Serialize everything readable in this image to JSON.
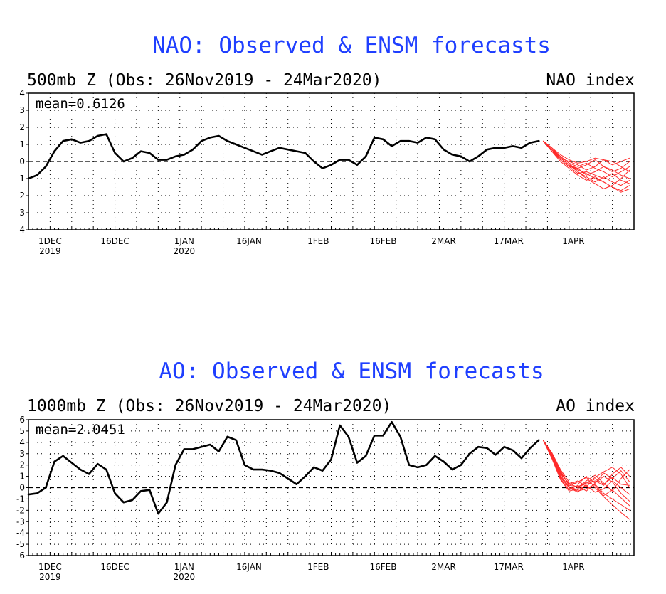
{
  "colors": {
    "title": "#1f3fff",
    "observed": "#000000",
    "forecast": "#ff2a2a",
    "grid": "#000000"
  },
  "chart_data": [
    {
      "type": "line",
      "title": "NAO: Observed & ENSM forecasts",
      "subtitle_left": "500mb Z (Obs: 26Nov2019 - 24Mar2020)",
      "subtitle_right": "NAO index",
      "mean_label": "mean=0.6126",
      "ylim": [
        -4,
        4
      ],
      "yticks": [
        "4",
        "3",
        "2",
        "1",
        "0",
        "-1",
        "-2",
        "-3",
        "-4"
      ],
      "xlim": [
        0,
        140
      ],
      "xticks": [
        {
          "day": 5,
          "label": "1DEC",
          "sub": "2019"
        },
        {
          "day": 20,
          "label": "16DEC",
          "sub": ""
        },
        {
          "day": 36,
          "label": "1JAN",
          "sub": "2020"
        },
        {
          "day": 51,
          "label": "16JAN",
          "sub": ""
        },
        {
          "day": 67,
          "label": "1FEB",
          "sub": ""
        },
        {
          "day": 82,
          "label": "16FEB",
          "sub": ""
        },
        {
          "day": 96,
          "label": "2MAR",
          "sub": ""
        },
        {
          "day": 111,
          "label": "17MAR",
          "sub": ""
        },
        {
          "day": 126,
          "label": "1APR",
          "sub": ""
        }
      ],
      "observed": {
        "x": [
          0,
          2,
          4,
          6,
          8,
          10,
          12,
          14,
          16,
          18,
          20,
          22,
          24,
          26,
          28,
          30,
          32,
          34,
          36,
          38,
          40,
          42,
          44,
          46,
          48,
          50,
          52,
          54,
          56,
          58,
          60,
          62,
          64,
          66,
          68,
          70,
          72,
          74,
          76,
          78,
          80,
          82,
          84,
          86,
          88,
          90,
          92,
          94,
          96,
          98,
          100,
          102,
          104,
          106,
          108,
          110,
          112,
          114,
          116,
          118
        ],
        "y": [
          -1.0,
          -0.8,
          -0.3,
          0.6,
          1.2,
          1.3,
          1.1,
          1.2,
          1.5,
          1.6,
          0.5,
          0.0,
          0.2,
          0.6,
          0.5,
          0.1,
          0.1,
          0.3,
          0.4,
          0.7,
          1.2,
          1.4,
          1.5,
          1.2,
          1.0,
          0.8,
          0.6,
          0.4,
          0.6,
          0.8,
          0.7,
          0.6,
          0.5,
          0.0,
          -0.4,
          -0.2,
          0.1,
          0.1,
          -0.2,
          0.3,
          1.4,
          1.3,
          0.9,
          1.2,
          1.2,
          1.1,
          1.4,
          1.3,
          0.7,
          0.4,
          0.3,
          0.0,
          0.3,
          0.7,
          0.8,
          0.8,
          0.9,
          0.8,
          1.1,
          1.2
        ]
      },
      "forecast": {
        "x": [
          119,
          121,
          123,
          125,
          127,
          129,
          131,
          133,
          135,
          137,
          139
        ],
        "members": [
          [
            1.2,
            0.7,
            0.2,
            -0.2,
            -0.5,
            -0.7,
            -1.0,
            -1.2,
            -1.5,
            -1.7,
            -1.4
          ],
          [
            1.2,
            0.6,
            0.1,
            -0.3,
            -0.4,
            -0.2,
            0.1,
            -0.3,
            -0.6,
            -0.4,
            0.0
          ],
          [
            1.2,
            0.8,
            0.3,
            -0.1,
            -0.6,
            -1.0,
            -1.3,
            -1.6,
            -1.4,
            -1.0,
            -0.5
          ],
          [
            1.2,
            0.7,
            0.2,
            0.0,
            -0.2,
            -0.5,
            -0.3,
            0.1,
            0.0,
            -0.3,
            -0.6
          ],
          [
            1.2,
            0.6,
            0.0,
            -0.4,
            -0.8,
            -1.1,
            -0.9,
            -1.2,
            -1.5,
            -1.8,
            -1.6
          ],
          [
            1.2,
            0.8,
            0.4,
            0.1,
            -0.1,
            0.0,
            0.2,
            0.1,
            -0.2,
            0.0,
            0.2
          ],
          [
            1.2,
            0.7,
            0.1,
            -0.3,
            -0.7,
            -0.6,
            -0.8,
            -1.0,
            -0.7,
            -1.1,
            -1.3
          ],
          [
            1.2,
            0.6,
            0.2,
            -0.2,
            -0.4,
            -0.8,
            -0.6,
            -0.3,
            -0.5,
            -0.8,
            -1.0
          ],
          [
            1.2,
            0.7,
            0.3,
            -0.1,
            -0.3,
            -0.1,
            -0.4,
            -0.6,
            -0.9,
            -0.6,
            -0.3
          ],
          [
            1.2,
            0.8,
            0.2,
            -0.2,
            -0.6,
            -0.9,
            -1.2,
            -0.9,
            -1.2,
            -1.4,
            -1.1
          ]
        ]
      }
    },
    {
      "type": "line",
      "title": "AO: Observed & ENSM forecasts",
      "subtitle_left": "1000mb Z (Obs: 26Nov2019 - 24Mar2020)",
      "subtitle_right": "AO index",
      "mean_label": "mean=2.0451",
      "ylim": [
        -6,
        6
      ],
      "yticks": [
        "6",
        "5",
        "4",
        "3",
        "2",
        "1",
        "0",
        "-1",
        "-2",
        "-3",
        "-4",
        "-5",
        "-6"
      ],
      "xlim": [
        0,
        140
      ],
      "xticks": [
        {
          "day": 5,
          "label": "1DEC",
          "sub": "2019"
        },
        {
          "day": 20,
          "label": "16DEC",
          "sub": ""
        },
        {
          "day": 36,
          "label": "1JAN",
          "sub": "2020"
        },
        {
          "day": 51,
          "label": "16JAN",
          "sub": ""
        },
        {
          "day": 67,
          "label": "1FEB",
          "sub": ""
        },
        {
          "day": 82,
          "label": "16FEB",
          "sub": ""
        },
        {
          "day": 96,
          "label": "2MAR",
          "sub": ""
        },
        {
          "day": 111,
          "label": "17MAR",
          "sub": ""
        },
        {
          "day": 126,
          "label": "1APR",
          "sub": ""
        }
      ],
      "observed": {
        "x": [
          0,
          2,
          4,
          6,
          8,
          10,
          12,
          14,
          16,
          18,
          20,
          22,
          24,
          26,
          28,
          30,
          32,
          34,
          36,
          38,
          40,
          42,
          44,
          46,
          48,
          50,
          52,
          54,
          56,
          58,
          60,
          62,
          64,
          66,
          68,
          70,
          72,
          74,
          76,
          78,
          80,
          82,
          84,
          86,
          88,
          90,
          92,
          94,
          96,
          98,
          100,
          102,
          104,
          106,
          108,
          110,
          112,
          114,
          116,
          118
        ],
        "y": [
          -0.6,
          -0.5,
          0.0,
          2.3,
          2.8,
          2.2,
          1.6,
          1.2,
          2.1,
          1.6,
          -0.5,
          -1.3,
          -1.1,
          -0.3,
          -0.2,
          -2.3,
          -1.3,
          2.0,
          3.4,
          3.4,
          3.6,
          3.8,
          3.2,
          4.5,
          4.2,
          2.0,
          1.6,
          1.6,
          1.5,
          1.3,
          0.8,
          0.3,
          1.0,
          1.8,
          1.5,
          2.5,
          5.5,
          4.5,
          2.2,
          2.8,
          4.6,
          4.6,
          5.8,
          4.5,
          2.0,
          1.8,
          2.0,
          2.8,
          2.3,
          1.6,
          2.0,
          3.0,
          3.6,
          3.5,
          2.9,
          3.6,
          3.3,
          2.6,
          3.5,
          4.2
        ]
      },
      "forecast": {
        "x": [
          119,
          121,
          123,
          125,
          127,
          129,
          131,
          133,
          135,
          137,
          139
        ],
        "members": [
          [
            4.2,
            2.8,
            1.0,
            0.0,
            -0.4,
            0.3,
            0.6,
            0.2,
            1.2,
            1.8,
            1.0
          ],
          [
            4.2,
            3.0,
            1.5,
            0.2,
            0.5,
            0.9,
            0.0,
            -0.8,
            -1.5,
            -2.2,
            -2.8
          ],
          [
            4.2,
            2.6,
            0.8,
            -0.2,
            0.2,
            -0.3,
            0.4,
            1.0,
            0.5,
            -0.5,
            -1.2
          ],
          [
            4.2,
            2.9,
            1.2,
            0.4,
            0.0,
            0.6,
            1.1,
            0.4,
            -0.3,
            0.8,
            1.6
          ],
          [
            4.2,
            2.7,
            0.9,
            0.0,
            -0.3,
            -0.1,
            0.3,
            -0.5,
            -1.0,
            -1.5,
            -2.0
          ],
          [
            4.2,
            3.1,
            1.6,
            0.5,
            0.3,
            1.0,
            0.4,
            1.3,
            0.8,
            1.5,
            0.5
          ],
          [
            4.2,
            2.8,
            1.1,
            0.1,
            -0.2,
            0.2,
            -0.4,
            -0.1,
            0.6,
            0.0,
            -0.6
          ],
          [
            4.2,
            2.9,
            1.3,
            0.3,
            0.6,
            0.1,
            0.8,
            0.3,
            0.9,
            0.3,
            0.2
          ],
          [
            4.2,
            2.6,
            0.7,
            -0.3,
            -0.1,
            0.5,
            0.2,
            -0.7,
            -0.2,
            -0.9,
            -1.6
          ],
          [
            4.2,
            3.0,
            1.4,
            0.2,
            0.1,
            0.4,
            0.9,
            1.4,
            1.8,
            1.2,
            0.0
          ]
        ]
      }
    }
  ]
}
